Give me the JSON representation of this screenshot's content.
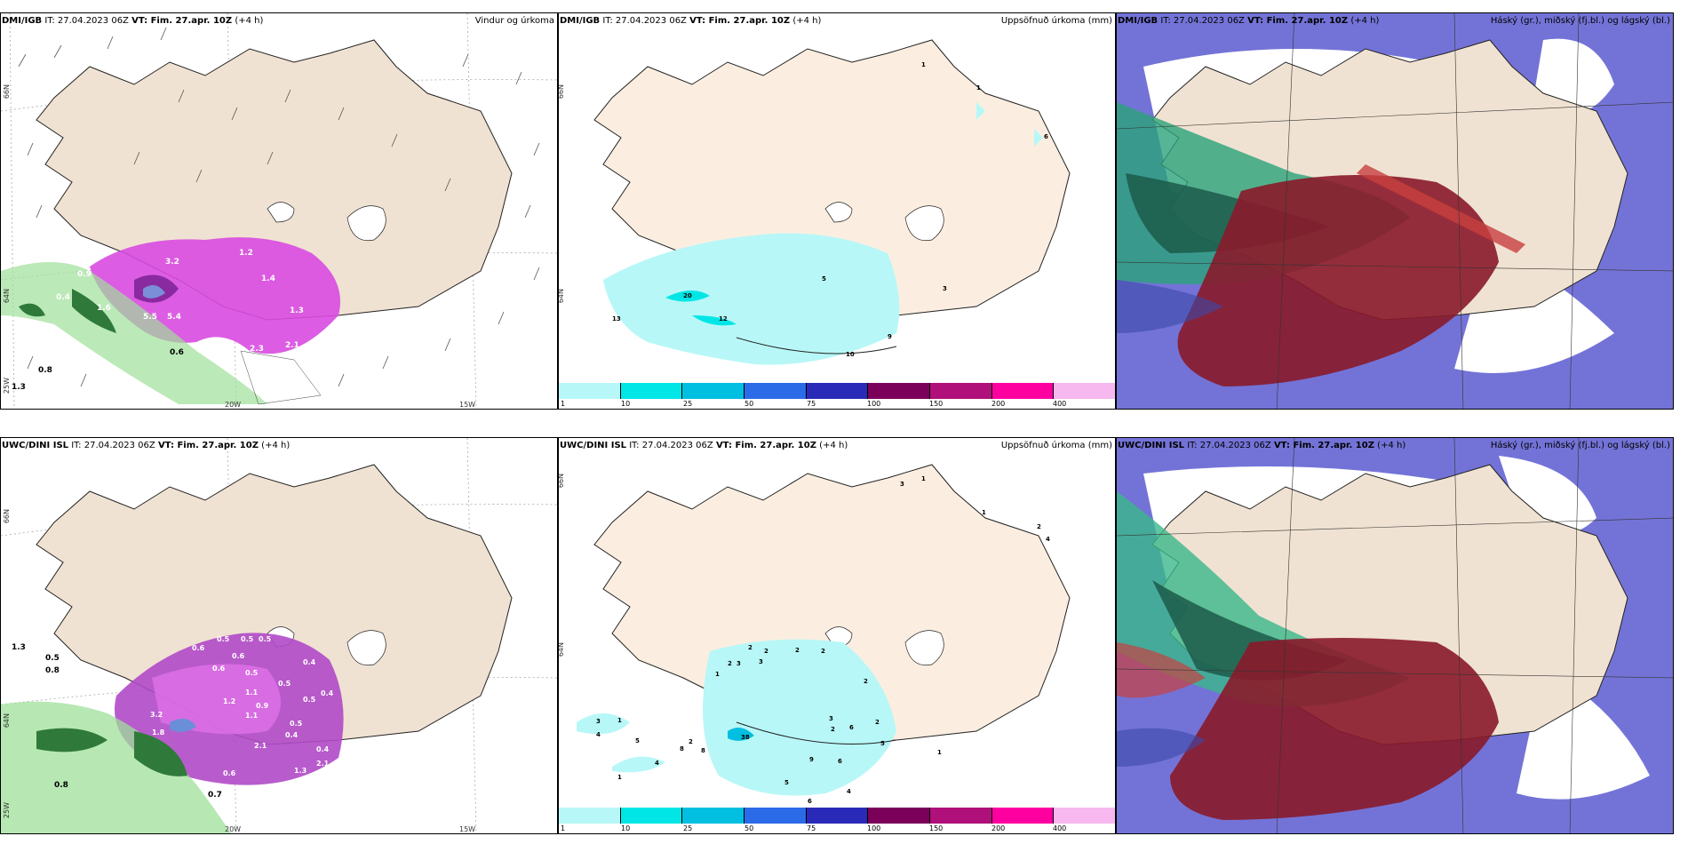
{
  "rows": [
    {
      "panels": [
        {
          "model": "DMI/IGB",
          "it_label": "IT:",
          "it": "27.04.2023 06Z",
          "vt_label": "VT:",
          "vt": "Fim. 27.apr. 10Z",
          "lead": "(+4 h)",
          "product": "Vindur og úrkoma",
          "type": "wind"
        },
        {
          "model": "DMI/IGB",
          "it_label": "IT:",
          "it": "27.04.2023 06Z",
          "vt_label": "VT:",
          "vt": "Fim. 27.apr. 10Z",
          "lead": "(+4 h)",
          "product": "Uppsöfnuð úrkoma (mm)",
          "type": "accum"
        },
        {
          "model": "DMI/IGB",
          "it_label": "IT:",
          "it": "27.04.2023 06Z",
          "vt_label": "VT:",
          "vt": "Fim. 27.apr. 10Z",
          "lead": "(+4 h)",
          "product": "Háský (gr.), miðský (fj.bl.) og lágský (bl.)",
          "type": "cloud"
        }
      ]
    },
    {
      "panels": [
        {
          "model": "UWC/DINI ISL",
          "it_label": "IT:",
          "it": "27.04.2023 06Z",
          "vt_label": "VT:",
          "vt": "Fim. 27.apr. 10Z",
          "lead": "(+4 h)",
          "product": "",
          "type": "wind"
        },
        {
          "model": "UWC/DINI ISL",
          "it_label": "IT:",
          "it": "27.04.2023 06Z",
          "vt_label": "VT:",
          "vt": "Fim. 27.apr. 10Z",
          "lead": "(+4 h)",
          "product": "Uppsöfnuð úrkoma (mm)",
          "type": "accum"
        },
        {
          "model": "UWC/DINI ISL",
          "it_label": "IT:",
          "it": "27.04.2023 06Z",
          "vt_label": "VT:",
          "vt": "Fim. 27.apr. 10Z",
          "lead": "(+4 h)",
          "product": "Háský (gr.), miðský (fj.bl.) og lágský (bl.)",
          "type": "cloud"
        }
      ]
    }
  ],
  "axis_labels": {
    "lat66": "66N",
    "lat64": "64N",
    "lon25": "25W",
    "lon20": "20W",
    "lon15": "15W"
  },
  "colorbar": {
    "ticks": [
      "1",
      "10",
      "25",
      "50",
      "75",
      "100",
      "150",
      "200",
      "400"
    ],
    "colors": [
      "#b8f7f7",
      "#00e6e6",
      "#00bfe0",
      "#2b6be8",
      "#2a2ab8",
      "#7a005a",
      "#b0107a",
      "#ff00a0",
      "#f7b8f0"
    ]
  },
  "wind_values_top": [
    "3.2",
    "1.2",
    "1.4",
    "0.8",
    "0.4",
    "0.9",
    "1.6",
    "5.5",
    "5.4",
    "1.3",
    "4.0",
    "2.3",
    "2.1",
    "0.6",
    "0.8",
    "1.3"
  ],
  "wind_values_bottom": [
    "0.5",
    "0.5",
    "0.5",
    "0.6",
    "0.6",
    "0.4",
    "0.6",
    "0.5",
    "1.2",
    "1.1",
    "0.9",
    "0.4",
    "0.5",
    "1.8",
    "0.5",
    "0.8",
    "3.2",
    "1.3",
    "0.5",
    "2.1",
    "0.7",
    "1.3",
    "0.4",
    "0.6",
    "0.8",
    "0.7",
    "2.1",
    "0.5",
    "1.1",
    "0.4"
  ],
  "accum_values_top": [
    "1",
    "1",
    "6",
    "5",
    "20",
    "13",
    "12",
    "10",
    "9",
    "3"
  ],
  "accum_values_bottom": [
    "3",
    "1",
    "1",
    "2",
    "4",
    "2",
    "3",
    "2",
    "2",
    "2",
    "3",
    "2",
    "1",
    "2",
    "3",
    "2",
    "6",
    "2",
    "3",
    "4",
    "5",
    "1",
    "8",
    "8",
    "4",
    "1",
    "2",
    "38",
    "5",
    "4",
    "6",
    "1",
    "9",
    "6",
    "5"
  ]
}
